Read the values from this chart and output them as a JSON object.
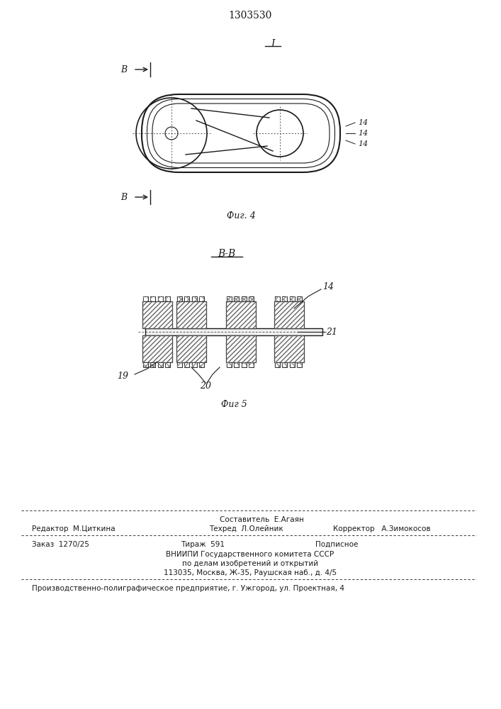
{
  "title": "1303530",
  "fig4_label": "Фиг. 4",
  "fig5_label": "Фиг 5",
  "section_label_top": "I",
  "section_label_side": "В-В",
  "cut_label_B": "В",
  "label_14": "14",
  "label_19": "19",
  "label_20": "20",
  "label_21": "21",
  "bg_color": "#ffffff",
  "line_color": "#1a1a1a",
  "font_size_title": 10,
  "font_size_labels": 8,
  "bottom_text_line1": "Составитель  Е.Агаян",
  "bottom_text_line1a": "Редактор  М.Циткина",
  "bottom_text_line1b": "Техред  Л.Олейник",
  "bottom_text_line1c": "Корректор   А.Зимокосов",
  "bottom_text_line2": "Заказ  1270/25",
  "bottom_text_line2a": "Тираж  591",
  "bottom_text_line2b": "Подписное",
  "bottom_text_line3": "ВНИИПИ Государственного комитета СССР",
  "bottom_text_line4": "по делам изобретений и открытий",
  "bottom_text_line5": "113035, Москва, Ж-35, Раушская наб., д. 4/5",
  "bottom_text_line6": "Производственно-полиграфическое предприятие, г. Ужгород, ул. Проектная, 4"
}
